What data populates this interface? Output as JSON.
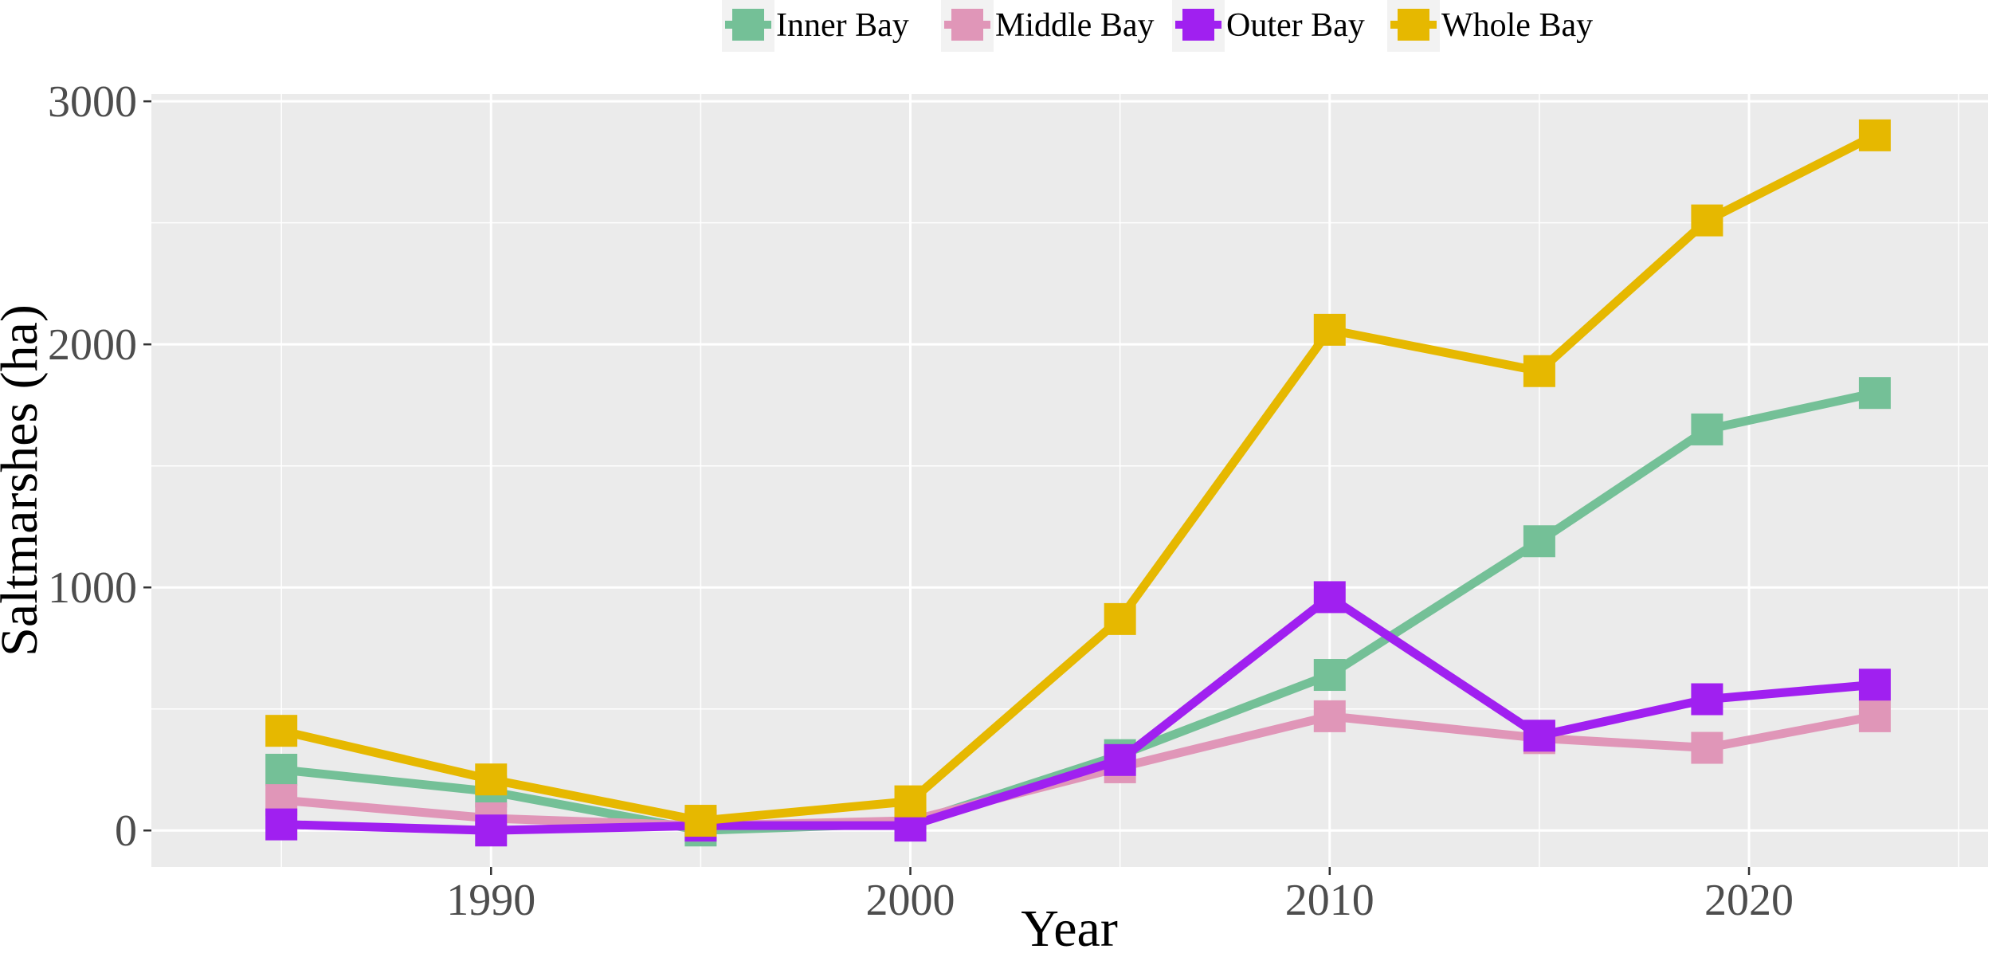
{
  "chart_data": {
    "type": "line",
    "xlabel": "Year",
    "ylabel": "Saltmarshes (ha)",
    "xlim": [
      1981.9,
      2025.7
    ],
    "ylim": [
      -150,
      3030
    ],
    "x_ticks": [
      1990,
      2000,
      2010,
      2020
    ],
    "y_ticks": [
      0,
      1000,
      2000,
      3000
    ],
    "grid": true,
    "legend_position": "top",
    "x": [
      1985,
      1990,
      1995,
      2000,
      2005,
      2010,
      2015,
      2019,
      2023
    ],
    "series": [
      {
        "name": "Inner Bay",
        "color": "#74c097",
        "values": [
          250,
          160,
          0,
          30,
          310,
          640,
          1190,
          1650,
          1800
        ]
      },
      {
        "name": "Middle Bay",
        "color": "#e096b8",
        "values": [
          125,
          50,
          20,
          40,
          260,
          470,
          380,
          340,
          470
        ]
      },
      {
        "name": "Outer Bay",
        "color": "#a020f0",
        "values": [
          25,
          0,
          20,
          20,
          290,
          960,
          390,
          540,
          600
        ]
      },
      {
        "name": "Whole Bay",
        "color": "#e6b800",
        "values": [
          410,
          210,
          40,
          120,
          870,
          2060,
          1890,
          2510,
          2860
        ]
      }
    ]
  }
}
